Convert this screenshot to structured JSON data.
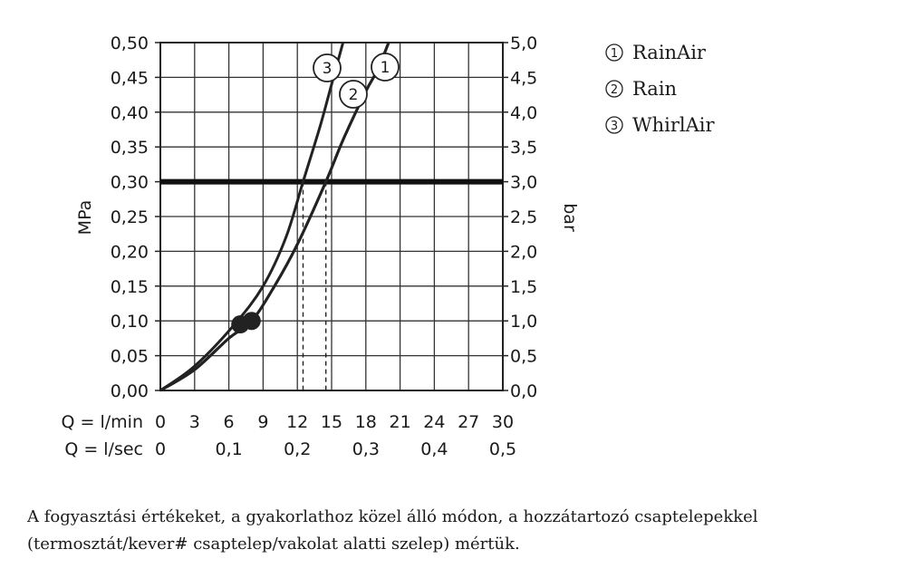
{
  "chart_data": {
    "type": "line",
    "y_left": {
      "label": "MPa",
      "range": [
        0,
        0.5
      ],
      "ticks": [
        "0,00",
        "0,05",
        "0,10",
        "0,15",
        "0,20",
        "0,25",
        "0,30",
        "0,35",
        "0,40",
        "0,45",
        "0,50"
      ]
    },
    "y_right": {
      "label": "bar",
      "range": [
        0,
        5
      ],
      "ticks": [
        "0,0",
        "0,5",
        "1,0",
        "1,5",
        "2,0",
        "2,5",
        "3,0",
        "3,5",
        "4,0",
        "4,5",
        "5,0"
      ]
    },
    "x_lmin": {
      "label": "Q = l/min",
      "range": [
        0,
        30
      ],
      "ticks": [
        "0",
        "3",
        "6",
        "9",
        "12",
        "15",
        "18",
        "21",
        "24",
        "27",
        "30"
      ]
    },
    "x_lsec": {
      "label": "Q = l/sec",
      "ticks": [
        "0",
        "0,1",
        "0,2",
        "0,3",
        "0,4",
        "0,5"
      ]
    },
    "grid": true,
    "reference_line": {
      "y": 0.3
    },
    "series": [
      {
        "name": "RainAir",
        "marker": "1",
        "points": [
          [
            0,
            0
          ],
          [
            3,
            0.03
          ],
          [
            6,
            0.075
          ],
          [
            8,
            0.1
          ],
          [
            10,
            0.15
          ],
          [
            12,
            0.21
          ],
          [
            14.5,
            0.3
          ],
          [
            16,
            0.36
          ],
          [
            18,
            0.43
          ],
          [
            19,
            0.46
          ],
          [
            20,
            0.5
          ]
        ]
      },
      {
        "name": "Rain",
        "marker": "2",
        "points": [
          [
            0,
            0
          ],
          [
            3,
            0.03
          ],
          [
            6,
            0.075
          ],
          [
            8,
            0.1
          ],
          [
            10,
            0.15
          ],
          [
            12,
            0.21
          ],
          [
            14.5,
            0.3
          ],
          [
            16,
            0.36
          ],
          [
            18,
            0.43
          ],
          [
            19,
            0.46
          ],
          [
            20,
            0.5
          ]
        ]
      },
      {
        "name": "WhirlAir",
        "marker": "3",
        "points": [
          [
            0,
            0
          ],
          [
            3,
            0.035
          ],
          [
            6.5,
            0.095
          ],
          [
            9,
            0.15
          ],
          [
            11,
            0.22
          ],
          [
            12.5,
            0.3
          ],
          [
            14,
            0.38
          ],
          [
            15,
            0.44
          ],
          [
            16,
            0.5
          ]
        ]
      }
    ],
    "operating_points": [
      {
        "series": "WhirlAir",
        "x": 12.5,
        "y": 0.3
      },
      {
        "series": "RainAir",
        "x": 14.5,
        "y": 0.3
      }
    ],
    "start_points": [
      {
        "x": 7,
        "y": 0.095
      },
      {
        "x": 8,
        "y": 0.1
      }
    ],
    "legend_position": "top-right"
  },
  "footnote": {
    "line1": "A fogyasztási értékeket, a gyakorlathoz közel álló módon, a hozzátartozó csaptelepekkel",
    "line2": "(termosztát/kever# csaptelep/vakolat alatti szelep) mértük."
  }
}
